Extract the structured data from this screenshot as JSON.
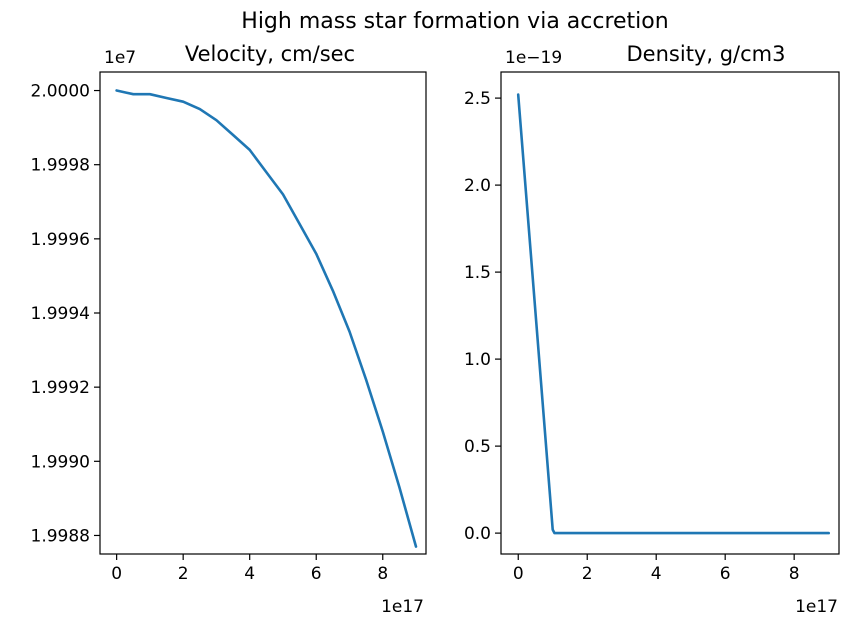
{
  "figure": {
    "suptitle": "High mass star formation via accretion"
  },
  "chart_data": [
    {
      "type": "line",
      "title": "Velocity,  cm/sec",
      "xlabel": "",
      "ylabel": "",
      "x_offset_label": "1e17",
      "y_offset_label": "1e7",
      "xlim": [
        -0.5,
        9.3
      ],
      "ylim": [
        1.99875,
        2.00005
      ],
      "x_ticks": [
        0,
        2,
        4,
        6,
        8
      ],
      "x_tick_labels": [
        "0",
        "2",
        "4",
        "6",
        "8"
      ],
      "y_ticks": [
        1.9988,
        1.999,
        1.9992,
        1.9994,
        1.9996,
        1.9998,
        2.0
      ],
      "y_tick_labels": [
        "1.9988",
        "1.9990",
        "1.9992",
        "1.9994",
        "1.9996",
        "1.9998",
        "2.0000"
      ],
      "grid": false,
      "color": "#1f77b4",
      "series": [
        {
          "x": [
            0,
            0.5,
            1,
            1.5,
            2,
            2.5,
            3,
            3.5,
            4,
            4.5,
            5,
            5.5,
            6,
            6.5,
            7,
            7.5,
            8,
            8.5,
            9
          ],
          "values": [
            2.0,
            1.99999,
            1.99999,
            1.99998,
            1.99997,
            1.99995,
            1.99992,
            1.99988,
            1.99984,
            1.99978,
            1.99972,
            1.99964,
            1.99956,
            1.99946,
            1.99935,
            1.99922,
            1.99908,
            1.99893,
            1.99877
          ]
        }
      ]
    },
    {
      "type": "line",
      "title": "Density, g/cm3",
      "xlabel": "",
      "ylabel": "",
      "x_offset_label": "1e17",
      "y_offset_label": "1e−19",
      "xlim": [
        -0.5,
        9.3
      ],
      "ylim": [
        -0.12,
        2.65
      ],
      "x_ticks": [
        0,
        2,
        4,
        6,
        8
      ],
      "x_tick_labels": [
        "0",
        "2",
        "4",
        "6",
        "8"
      ],
      "y_ticks": [
        0.0,
        0.5,
        1.0,
        1.5,
        2.0,
        2.5
      ],
      "y_tick_labels": [
        "0.0",
        "0.5",
        "1.0",
        "1.5",
        "2.0",
        "2.5"
      ],
      "grid": false,
      "color": "#1f77b4",
      "series": [
        {
          "x": [
            0,
            1,
            1.05,
            9
          ],
          "values": [
            2.52,
            0.02,
            0.0,
            0.0
          ]
        }
      ]
    }
  ]
}
